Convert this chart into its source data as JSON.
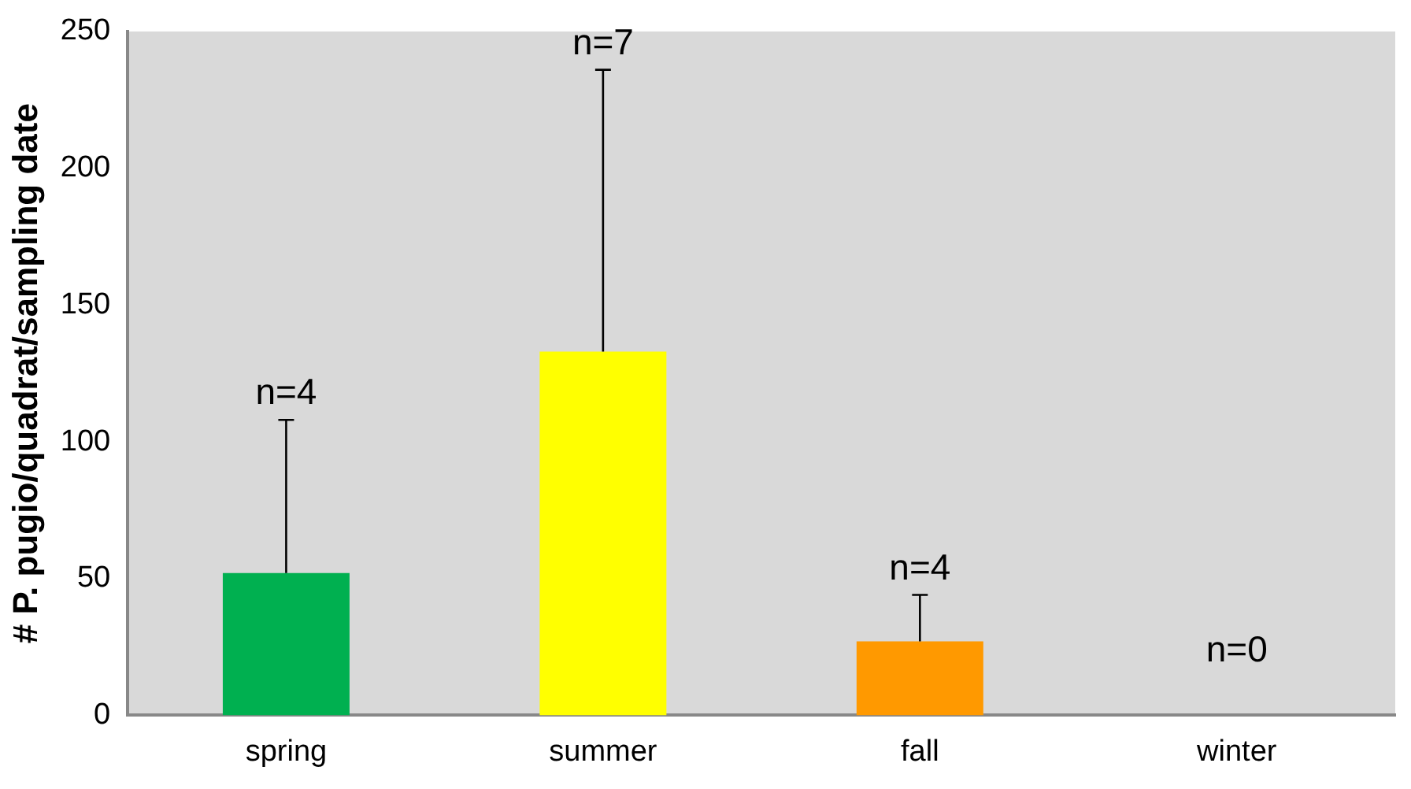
{
  "chart_data": {
    "type": "bar",
    "ylabel": "# P. pugio/quadrat/sampling date",
    "categories": [
      "spring",
      "summer",
      "fall",
      "winter"
    ],
    "values": [
      52,
      133,
      27,
      0
    ],
    "colors": [
      "#00b050",
      "#ffff00",
      "#ff9900",
      "#7f7f7f"
    ],
    "errors": [
      [
        52,
        108
      ],
      [
        133,
        236
      ],
      [
        27,
        44
      ],
      null
    ],
    "ylim": [
      0,
      250
    ],
    "yticks": [
      0,
      50,
      100,
      150,
      200,
      250
    ],
    "grid": false,
    "annotations": [
      "n=4",
      "n=7",
      "n=4",
      "n=0"
    ]
  }
}
